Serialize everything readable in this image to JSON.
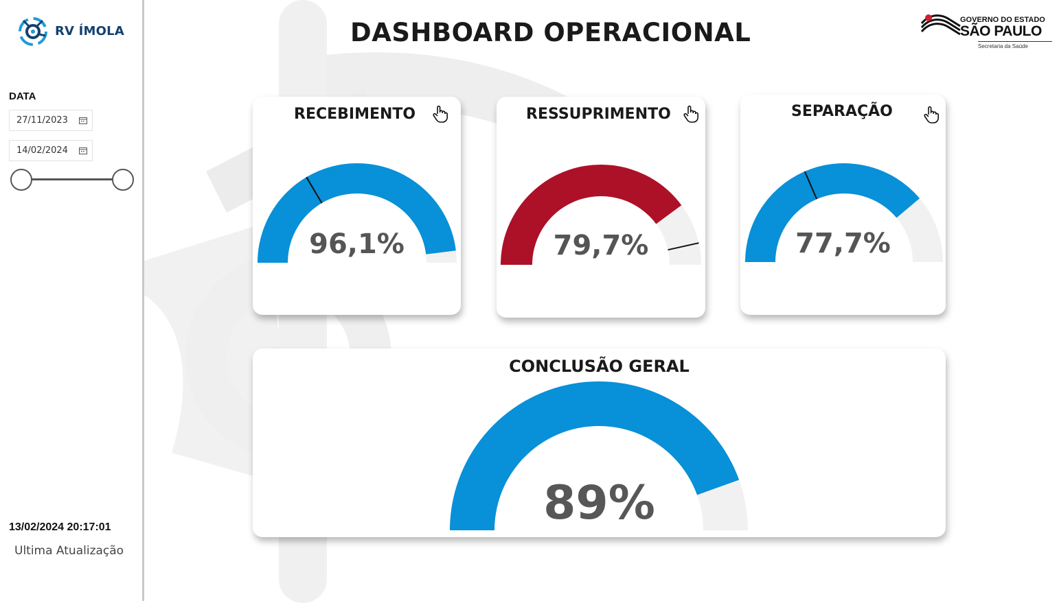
{
  "header": {
    "title": "DASHBOARD OPERACIONAL"
  },
  "brand": {
    "name": "RV ÍMOLA"
  },
  "gov_logo": {
    "line1": "GOVERNO DO ESTADO",
    "line2": "SÃO PAULO",
    "line3": "Secretaria da Saúde"
  },
  "filters": {
    "label": "DATA",
    "start_date": "27/11/2023",
    "end_date": "14/02/2024",
    "range_slider": {
      "start_fraction": 0,
      "end_fraction": 1
    }
  },
  "last_update": {
    "timestamp": "13/02/2024 20:17:01",
    "label": "Ultima Atualização"
  },
  "colors": {
    "blue": "#0890d8",
    "red": "#ad1127",
    "track": "#f1f1f1"
  },
  "gauges": [
    {
      "title": "RECEBIMENTO",
      "value_label": "96,1%",
      "value": 96.1,
      "target_marker": 33,
      "color": "#0890d8"
    },
    {
      "title": "RESSUPRIMENTO",
      "value_label": "79,7%",
      "value": 79.7,
      "target_marker": 93,
      "color": "#ad1127"
    },
    {
      "title": "SEPARAÇÃO",
      "value_label": "77,7%",
      "value": 77.7,
      "target_marker": 37,
      "color": "#0890d8"
    },
    {
      "title": "CONCLUSÃO GERAL",
      "value_label": "89%",
      "value": 89,
      "color": "#0890d8"
    }
  ]
}
